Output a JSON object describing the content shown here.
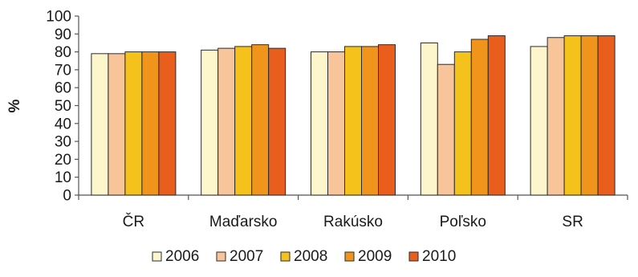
{
  "chart_data": {
    "type": "bar",
    "title": "",
    "xlabel": "",
    "ylabel": "%",
    "ylim": [
      0,
      100
    ],
    "yticks": [
      0,
      10,
      20,
      30,
      40,
      50,
      60,
      70,
      80,
      90,
      100
    ],
    "grid": false,
    "legend_position": "bottom",
    "categories": [
      "ČR",
      "Maďarsko",
      "Rakúsko",
      "Poľsko",
      "SR"
    ],
    "series": [
      {
        "name": "2006",
        "color": "#fdf6cc",
        "values": [
          79,
          81,
          80,
          85,
          83
        ]
      },
      {
        "name": "2007",
        "color": "#f8c49a",
        "values": [
          79,
          82,
          80,
          73,
          88
        ]
      },
      {
        "name": "2008",
        "color": "#f5c21b",
        "values": [
          80,
          83,
          83,
          80,
          89
        ]
      },
      {
        "name": "2009",
        "color": "#f0941c",
        "values": [
          80,
          84,
          83,
          87,
          89
        ]
      },
      {
        "name": "2010",
        "color": "#e95e1c",
        "values": [
          80,
          82,
          84,
          89,
          89
        ]
      }
    ]
  }
}
